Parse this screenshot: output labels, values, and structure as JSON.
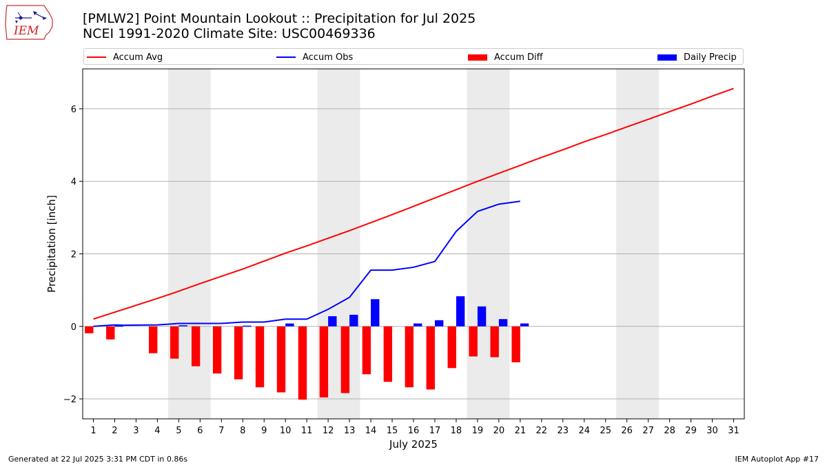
{
  "logo_text": "IEM",
  "title_line1": "[PMLW2] Point Mountain Lookout :: Precipitation for Jul 2025",
  "title_line2": "NCEI 1991-2020 Climate Site: USC00469336",
  "legend": [
    {
      "label": "Accum Avg",
      "kind": "line",
      "color": "#ff0000"
    },
    {
      "label": "Accum Obs",
      "kind": "line",
      "color": "#0000ff"
    },
    {
      "label": "Accum Diff",
      "kind": "box",
      "color": "#ff0000"
    },
    {
      "label": "Daily Precip",
      "kind": "box",
      "color": "#0000ff"
    }
  ],
  "footer_left": "Generated at 22 Jul 2025 3:31 PM CDT in 0.86s",
  "footer_right": "IEM Autoplot App #17",
  "chart_data": {
    "type": "bar",
    "xlabel": "July 2025",
    "ylabel": "Precipitation [inch]",
    "ylim": [
      -2.55,
      7.1
    ],
    "xlim": [
      0.5,
      31.5
    ],
    "yticks": [
      -2,
      0,
      2,
      4,
      6
    ],
    "ytick_labels": [
      "−2",
      "0",
      "2",
      "4",
      "6"
    ],
    "xticks": [
      "1",
      "2",
      "3",
      "4",
      "5",
      "6",
      "7",
      "8",
      "9",
      "10",
      "11",
      "12",
      "13",
      "14",
      "15",
      "16",
      "17",
      "18",
      "19",
      "20",
      "21",
      "22",
      "23",
      "24",
      "25",
      "26",
      "27",
      "28",
      "29",
      "30",
      "31"
    ],
    "grid": "horizontal",
    "weekend_shading": [
      [
        4.5,
        6.5
      ],
      [
        11.5,
        13.5
      ],
      [
        18.5,
        20.5
      ],
      [
        25.5,
        27.5
      ]
    ],
    "accum_avg": {
      "days": [
        1,
        2,
        3,
        4,
        5,
        6,
        7,
        8,
        9,
        10,
        11,
        12,
        13,
        14,
        15,
        16,
        17,
        18,
        19,
        20,
        21,
        22,
        23,
        24,
        25,
        26,
        27,
        28,
        29,
        30,
        31
      ],
      "values": [
        0.2,
        0.39,
        0.58,
        0.77,
        0.97,
        1.18,
        1.38,
        1.58,
        1.8,
        2.02,
        2.22,
        2.43,
        2.64,
        2.86,
        3.08,
        3.31,
        3.54,
        3.77,
        4.0,
        4.22,
        4.44,
        4.66,
        4.87,
        5.09,
        5.29,
        5.5,
        5.71,
        5.92,
        6.13,
        6.35,
        6.56
      ]
    },
    "accum_obs": {
      "days": [
        1,
        2,
        2.4,
        4,
        5,
        6,
        7,
        8,
        9,
        10,
        11,
        12,
        13,
        14,
        15,
        16,
        17,
        18,
        19,
        20,
        21
      ],
      "values": [
        0.0,
        0.04,
        0.03,
        0.04,
        0.08,
        0.08,
        0.08,
        0.12,
        0.12,
        0.2,
        0.2,
        0.47,
        0.8,
        1.55,
        1.55,
        1.63,
        1.79,
        2.62,
        3.17,
        3.37,
        3.45
      ]
    },
    "accum_diff": {
      "days": [
        1,
        2,
        4,
        5,
        6,
        7,
        8,
        9,
        10,
        11,
        12,
        13,
        14,
        15,
        16,
        17,
        18,
        19,
        20,
        21
      ],
      "values": [
        -0.19,
        -0.36,
        -0.74,
        -0.89,
        -1.1,
        -1.3,
        -1.46,
        -1.68,
        -1.82,
        -2.02,
        -1.96,
        -1.84,
        -1.32,
        -1.53,
        -1.68,
        -1.74,
        -1.15,
        -0.83,
        -0.85,
        -0.99
      ]
    },
    "daily_precip": {
      "days": [
        2,
        5,
        8,
        10,
        12,
        13,
        14,
        16,
        17,
        18,
        19,
        20,
        21
      ],
      "values": [
        0.02,
        0.03,
        0.02,
        0.08,
        0.28,
        0.32,
        0.75,
        0.08,
        0.17,
        0.83,
        0.55,
        0.2,
        0.08
      ]
    },
    "colors": {
      "avg": "#ff0000",
      "obs": "#0000ff",
      "diff": "#ff0000",
      "daily": "#0000ff",
      "shade": "#ebebeb",
      "grid": "#b0b0b0"
    }
  }
}
